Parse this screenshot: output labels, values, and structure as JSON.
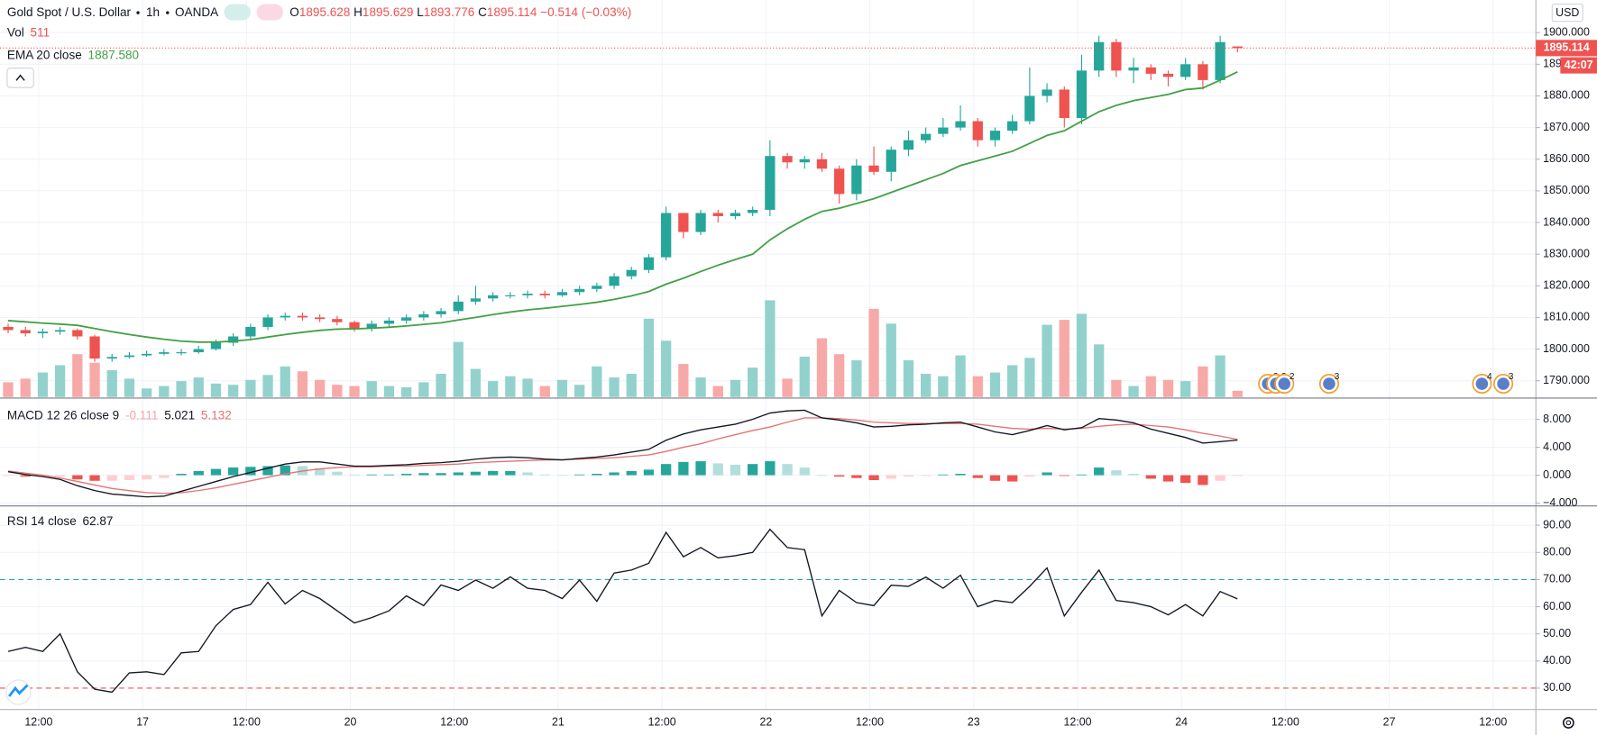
{
  "header": {
    "title": "Gold Spot / U.S. Dollar",
    "interval": "1h",
    "source": "OANDA",
    "ohlc_prefixes": [
      "O",
      "H",
      "L",
      "C"
    ],
    "change_label": "−0.514 (−0.03%)"
  },
  "price_axis": {
    "currency": "USD",
    "countdown": "42:07"
  },
  "time_axis": {
    "labels": [
      "12:00",
      "17",
      "12:00",
      "20",
      "12:00",
      "21",
      "12:00",
      "22",
      "12:00",
      "23",
      "12:00",
      "24",
      "12:00",
      "27",
      "12:00"
    ]
  },
  "events": [
    {
      "labels": [
        "2",
        "3",
        "2"
      ]
    },
    {
      "labels": [
        "3"
      ]
    },
    {
      "labels": [
        "4"
      ]
    },
    {
      "labels": [
        "3"
      ]
    }
  ],
  "chart_data": [
    {
      "type": "candlestick",
      "up_color": "#26a69a",
      "down_color": "#ef5350",
      "grid": true,
      "open": [
        1807,
        1806,
        1805,
        1805.5,
        1806,
        1804,
        1797,
        1797.5,
        1798,
        1798.5,
        1799,
        1799,
        1800,
        1802,
        1804,
        1807,
        1810,
        1810.5,
        1810,
        1809.5,
        1808.5,
        1806.5,
        1808,
        1809,
        1810,
        1811,
        1812,
        1815,
        1816,
        1817,
        1817,
        1817.5,
        1817,
        1818,
        1819,
        1820,
        1823,
        1825,
        1829,
        1843,
        1837,
        1843,
        1842,
        1843,
        1844,
        1861,
        1859,
        1860,
        1857,
        1849,
        1858,
        1856,
        1863,
        1866,
        1868,
        1870,
        1872,
        1866,
        1869,
        1872,
        1880,
        1882,
        1873,
        1888,
        1897,
        1888,
        1889,
        1887,
        1886,
        1890,
        1885,
        1895.628
      ],
      "high": [
        1808,
        1807,
        1806.5,
        1807,
        1806.5,
        1804.5,
        1798.5,
        1799,
        1799.5,
        1800,
        1800,
        1801,
        1803,
        1805,
        1808,
        1811,
        1811.5,
        1811.5,
        1811,
        1810.5,
        1809,
        1809,
        1810,
        1811,
        1812,
        1813,
        1817,
        1820,
        1818,
        1818,
        1818.5,
        1818.5,
        1819,
        1820,
        1821,
        1824,
        1826,
        1830,
        1845,
        1843,
        1844,
        1844,
        1844,
        1845,
        1866,
        1862,
        1861,
        1862,
        1858,
        1860,
        1864,
        1864,
        1869,
        1870,
        1873,
        1877,
        1873,
        1870,
        1874,
        1889,
        1884,
        1883,
        1893,
        1899,
        1898,
        1892,
        1890,
        1888,
        1892,
        1891,
        1899,
        1895.629
      ],
      "low": [
        1805,
        1804,
        1803.5,
        1804.5,
        1803,
        1796,
        1796,
        1797,
        1797.5,
        1798,
        1798,
        1798.5,
        1799.5,
        1801,
        1803,
        1806,
        1809,
        1809,
        1808.5,
        1807.5,
        1805.5,
        1805.5,
        1807,
        1808,
        1809,
        1810,
        1811,
        1814,
        1815,
        1816,
        1816,
        1816,
        1816.5,
        1817,
        1818,
        1819,
        1822,
        1824,
        1828,
        1835,
        1836,
        1840,
        1841,
        1842,
        1842,
        1857,
        1857,
        1856,
        1846,
        1847,
        1855,
        1853,
        1861,
        1865,
        1867,
        1869,
        1864,
        1864,
        1868,
        1871,
        1878,
        1870,
        1871,
        1886,
        1886,
        1884,
        1885,
        1883,
        1885,
        1882,
        1884,
        1893.776
      ],
      "close": [
        1806,
        1805,
        1805.5,
        1806,
        1804,
        1797,
        1797.5,
        1798,
        1798.5,
        1799,
        1799,
        1800,
        1802,
        1804,
        1807,
        1810,
        1810.5,
        1810,
        1809.5,
        1808.5,
        1806.5,
        1808,
        1809,
        1810,
        1811,
        1812,
        1815,
        1816,
        1817,
        1817,
        1817.5,
        1817,
        1818,
        1819,
        1820,
        1823,
        1825,
        1829,
        1843,
        1837,
        1843,
        1842,
        1843,
        1844,
        1861,
        1859,
        1860,
        1857,
        1849,
        1858,
        1856,
        1863,
        1866,
        1868,
        1870,
        1872,
        1866,
        1869,
        1872,
        1880,
        1882,
        1873,
        1888,
        1897,
        1888,
        1889,
        1887,
        1886,
        1890,
        1885,
        1897,
        1895.114
      ],
      "ema": {
        "name": "EMA 20 close",
        "color": "#43a047",
        "value_label": "1887.580",
        "values": [
          1809,
          1808.6,
          1808.2,
          1807.9,
          1807.5,
          1806.5,
          1805.5,
          1804.6,
          1803.8,
          1803.1,
          1802.5,
          1802.2,
          1802.2,
          1802.5,
          1803,
          1803.8,
          1804.6,
          1805.3,
          1805.9,
          1806.3,
          1806.4,
          1806.6,
          1806.9,
          1807.3,
          1807.8,
          1808.3,
          1809.2,
          1810,
          1810.9,
          1811.7,
          1812.4,
          1812.9,
          1813.5,
          1814.1,
          1814.8,
          1815.7,
          1816.8,
          1818.2,
          1820.5,
          1822.4,
          1824.5,
          1826.5,
          1828.3,
          1830,
          1834.5,
          1838,
          1841,
          1843.5,
          1844.5,
          1846,
          1847.5,
          1849.5,
          1851.5,
          1853.5,
          1855.5,
          1858,
          1859.5,
          1861,
          1862.5,
          1865,
          1867.5,
          1869,
          1872,
          1875,
          1877,
          1878.5,
          1879.5,
          1880.5,
          1882,
          1882.5,
          1885,
          1887.58
        ]
      },
      "ylim": [
        1784.85,
        1910.3
      ],
      "yticks": [
        {
          "value": 1790,
          "label": "1790.000"
        },
        {
          "value": 1800,
          "label": "1800.000"
        },
        {
          "value": 1810,
          "label": "1810.000"
        },
        {
          "value": 1820,
          "label": "1820.000"
        },
        {
          "value": 1830,
          "label": "1830.000"
        },
        {
          "value": 1840,
          "label": "1840.000"
        },
        {
          "value": 1850,
          "label": "1850.000"
        },
        {
          "value": 1860,
          "label": "1860.000"
        },
        {
          "value": 1870,
          "label": "1870.000"
        },
        {
          "value": 1880,
          "label": "1880.000"
        },
        {
          "value": 1890,
          "label": "1890.000"
        },
        {
          "value": 1900,
          "label": "1900.000"
        }
      ]
    },
    {
      "type": "bar",
      "name": "Vol",
      "up_color": "#93d2cc",
      "down_color": "#f7a9a7",
      "values": [
        1200,
        1500,
        2000,
        2600,
        3500,
        2800,
        2200,
        1500,
        700,
        900,
        1300,
        1600,
        1100,
        1000,
        1400,
        1800,
        2500,
        2100,
        1400,
        1000,
        900,
        1300,
        900,
        800,
        1200,
        1900,
        4500,
        2300,
        1300,
        1700,
        1500,
        900,
        1400,
        1000,
        2500,
        1600,
        1900,
        6400,
        4600,
        2700,
        1600,
        900,
        1400,
        2400,
        7900,
        1500,
        3300,
        4800,
        3500,
        3000,
        7200,
        6000,
        3000,
        1900,
        1700,
        3400,
        1700,
        2000,
        2600,
        3200,
        5900,
        6300,
        6800,
        4300,
        1400,
        900,
        1700,
        1400,
        1300,
        2500,
        3400,
        511
      ]
    },
    {
      "type": "macd",
      "name": "MACD 12 26 close 9",
      "macd_color": "#131722",
      "signal_color": "#e57373",
      "histogram_legend_color": "#f4a6a4",
      "histogram_colors": [
        "#26a69a",
        "#b2dfdb",
        "#ef5350",
        "#ffcdd2"
      ],
      "histogram": [
        -0.1,
        -0.2,
        -0.2,
        -0.2,
        -0.6,
        -0.8,
        -0.8,
        -0.7,
        -0.6,
        -0.4,
        0.2,
        0.6,
        0.9,
        1.1,
        1.2,
        1.3,
        1.4,
        1.3,
        1.0,
        0.5,
        0.1,
        0.1,
        0.1,
        0.2,
        0.3,
        0.3,
        0.4,
        0.5,
        0.6,
        0.6,
        0.4,
        0.1,
        0.0,
        0.1,
        0.2,
        0.4,
        0.6,
        0.8,
        1.6,
        1.9,
        2.0,
        1.7,
        1.5,
        1.6,
        2.0,
        1.6,
        1.1,
        0,
        -0.2,
        -0.4,
        -0.7,
        -0.5,
        -0.2,
        -0.1,
        0.1,
        0.2,
        -0.4,
        -0.8,
        -0.9,
        -0.2,
        0.4,
        -0.1,
        0.1,
        1.1,
        0.7,
        0.2,
        -0.5,
        -0.9,
        -1.1,
        -1.4,
        -0.8,
        -0.111
      ],
      "macd": [
        0.5,
        0.1,
        -0.2,
        -0.6,
        -1.5,
        -2.2,
        -2.7,
        -2.9,
        -3.1,
        -3.0,
        -2.3,
        -1.6,
        -0.9,
        -0.2,
        0.4,
        1.0,
        1.6,
        1.9,
        1.9,
        1.6,
        1.3,
        1.3,
        1.4,
        1.5,
        1.7,
        1.8,
        2.0,
        2.3,
        2.5,
        2.6,
        2.5,
        2.3,
        2.2,
        2.4,
        2.6,
        2.9,
        3.3,
        3.7,
        5.0,
        5.9,
        6.5,
        6.9,
        7.3,
        8.0,
        8.9,
        9.2,
        9.3,
        8.2,
        7.9,
        7.5,
        6.9,
        7.0,
        7.2,
        7.3,
        7.5,
        7.6,
        6.9,
        6.2,
        5.8,
        6.4,
        7.1,
        6.5,
        6.8,
        8.1,
        7.9,
        7.5,
        6.6,
        6.0,
        5.4,
        4.6,
        4.8,
        5.021
      ],
      "signal": [
        0.6,
        0.3,
        0.0,
        -0.4,
        -0.9,
        -1.4,
        -1.9,
        -2.2,
        -2.5,
        -2.6,
        -2.5,
        -2.2,
        -1.8,
        -1.3,
        -0.8,
        -0.3,
        0.2,
        0.6,
        0.9,
        1.1,
        1.2,
        1.2,
        1.3,
        1.3,
        1.4,
        1.5,
        1.6,
        1.8,
        1.9,
        2.0,
        2.1,
        2.2,
        2.2,
        2.3,
        2.4,
        2.5,
        2.7,
        2.9,
        3.4,
        4.0,
        4.5,
        5.2,
        5.8,
        6.4,
        6.9,
        7.6,
        8.2,
        8.2,
        8.1,
        7.9,
        7.6,
        7.5,
        7.4,
        7.4,
        7.4,
        7.4,
        7.3,
        7.0,
        6.7,
        6.6,
        6.7,
        6.6,
        6.7,
        7.0,
        7.2,
        7.3,
        7.1,
        6.9,
        6.5,
        6.0,
        5.6,
        5.132
      ],
      "ylim": [
        -4.4,
        10.9
      ],
      "yticks": [
        {
          "value": 8,
          "label": "8.000"
        },
        {
          "value": 4,
          "label": "4.000"
        },
        {
          "value": 0,
          "label": "0.000"
        },
        {
          "value": -4,
          "label": "−4.000"
        }
      ]
    },
    {
      "type": "line",
      "name": "RSI 14 close",
      "color": "#131722",
      "band_colors": [
        "#26a69a",
        "#ef5350"
      ],
      "bands": [
        70,
        30
      ],
      "values": [
        43.5,
        45,
        43.5,
        50,
        36,
        29.6,
        28.5,
        35.6,
        36,
        35,
        43,
        43.5,
        53,
        59,
        60.8,
        69,
        61,
        66,
        63,
        58.5,
        54,
        56,
        58.5,
        64,
        60.4,
        68,
        66,
        69.8,
        66.8,
        71,
        66.8,
        66,
        63,
        69.8,
        62,
        72.4,
        73.5,
        76,
        87.4,
        78.4,
        81.8,
        78,
        78.8,
        80,
        88.5,
        81.8,
        81,
        56.6,
        66,
        61.5,
        60.4,
        67.9,
        67.5,
        70.9,
        66.8,
        71.6,
        60,
        62.3,
        61.5,
        67.5,
        74.3,
        56.6,
        65.3,
        73.5,
        62.3,
        61.5,
        60,
        57,
        60.8,
        56.6,
        65.6,
        62.87
      ],
      "ylim": [
        22.1,
        96.75
      ],
      "yticks": [
        {
          "value": 90,
          "label": "90.00"
        },
        {
          "value": 80,
          "label": "80.00"
        },
        {
          "value": 70,
          "label": "70.00"
        },
        {
          "value": 60,
          "label": "60.00"
        },
        {
          "value": 50,
          "label": "50.00"
        },
        {
          "value": 40,
          "label": "40.00"
        },
        {
          "value": 30,
          "label": "30.00"
        }
      ]
    }
  ]
}
